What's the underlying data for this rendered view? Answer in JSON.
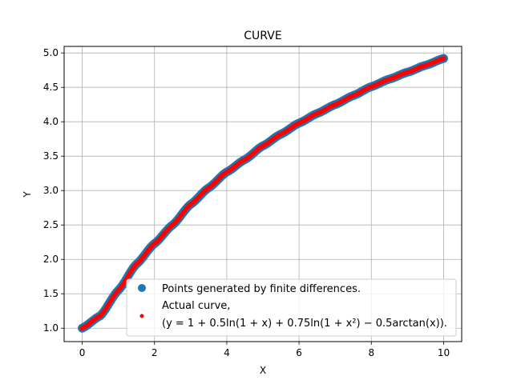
{
  "chart_data": {
    "type": "scatter",
    "title": "CURVE",
    "xlabel": "X",
    "ylabel": "Y",
    "xlim": [
      -0.5,
      10.5
    ],
    "ylim": [
      0.805,
      5.095
    ],
    "xticks": [
      "0",
      "2",
      "4",
      "6",
      "8",
      "10"
    ],
    "yticks": [
      "1.0",
      "1.5",
      "2.0",
      "2.5",
      "3.0",
      "3.5",
      "4.0",
      "4.5",
      "5.0"
    ],
    "grid": true,
    "legend_position": "lower-right",
    "colors": {
      "finite_differences": "#1f77b4",
      "actual_curve": "#ff0000"
    },
    "series": [
      {
        "name": "Points generated by finite differences.",
        "marker": "large-dot",
        "x": [
          0.0,
          0.5,
          1.0,
          1.5,
          2.0,
          2.5,
          3.0,
          3.5,
          4.0,
          4.5,
          5.0,
          5.5,
          6.0,
          6.5,
          7.0,
          7.5,
          8.0,
          8.5,
          9.0,
          9.5,
          10.0
        ],
        "y": [
          1.0,
          1.18,
          1.55,
          1.93,
          2.23,
          2.5,
          2.8,
          3.04,
          3.27,
          3.45,
          3.65,
          3.82,
          3.98,
          4.12,
          4.25,
          4.38,
          4.51,
          4.62,
          4.72,
          4.82,
          4.92
        ]
      },
      {
        "name": "Actual curve,",
        "marker": "small-dot",
        "x": [
          0.0,
          0.5,
          1.0,
          1.5,
          2.0,
          2.5,
          3.0,
          3.5,
          4.0,
          4.5,
          5.0,
          5.5,
          6.0,
          6.5,
          7.0,
          7.5,
          8.0,
          8.5,
          9.0,
          9.5,
          10.0
        ],
        "y": [
          1.0,
          1.18,
          1.55,
          1.93,
          2.23,
          2.5,
          2.8,
          3.04,
          3.27,
          3.45,
          3.65,
          3.82,
          3.98,
          4.12,
          4.25,
          4.38,
          4.51,
          4.62,
          4.72,
          4.82,
          4.92
        ]
      }
    ],
    "legend": [
      "Points generated by finite differences.",
      "Actual curve,",
      "(y = 1 + 0.5ln(1 + x) + 0.75ln(1 + x²) − 0.5arctan(x))."
    ]
  }
}
